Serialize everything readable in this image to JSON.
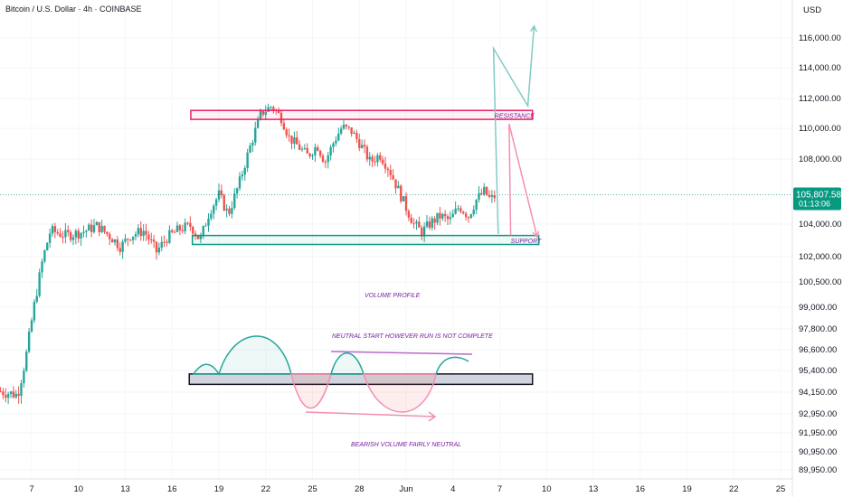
{
  "header": {
    "title": "Bitcoin / U.S. Dollar · 4h · COINBASE",
    "currency": "USD"
  },
  "last_price": {
    "value": 105807.58,
    "label": "105,807.58",
    "countdown": "01:13:06",
    "color": "#089981"
  },
  "colors": {
    "up": "#26a69a",
    "down": "#ef5350",
    "resistance": "#e91e63",
    "support": "#089981",
    "teal_arrow": "#80cbc4",
    "pink_arrow": "#f48fb1",
    "annotation_text": "#7b1fa2",
    "profile_bar": "#d1d4dc"
  },
  "annotations": {
    "resistance": "RESISTANCE",
    "support": "SUPPORT",
    "volume_profile": "VOLUME PROFILE",
    "neutral": "NEUTRAL START HOWEVER RUN IS NOT COMPLETE",
    "bearish": "BEARISH VOLUME FAIRLY NEUTRAL"
  },
  "chart_data": {
    "type": "candlestick",
    "title": "Bitcoin / U.S. Dollar · 4h · COINBASE",
    "y_axis": {
      "currency": "USD",
      "ticks": [
        {
          "value": 116000,
          "label": "116,000.00"
        },
        {
          "value": 114000,
          "label": "114,000.00"
        },
        {
          "value": 112000,
          "label": "112,000.00"
        },
        {
          "value": 110000,
          "label": "110,000.00"
        },
        {
          "value": 108000,
          "label": "108,000.00"
        },
        {
          "value": 104000,
          "label": "104,000.00"
        },
        {
          "value": 102000,
          "label": "102,000.00"
        },
        {
          "value": 100500,
          "label": "100,500.00"
        },
        {
          "value": 99000,
          "label": "99,000.00"
        },
        {
          "value": 97800,
          "label": "97,800.00"
        },
        {
          "value": 96600,
          "label": "96,600.00"
        },
        {
          "value": 95400,
          "label": "95,400.00"
        },
        {
          "value": 94150,
          "label": "94,150.00"
        },
        {
          "value": 92950,
          "label": "92,950.00"
        },
        {
          "value": 91950,
          "label": "91,950.00"
        },
        {
          "value": 90950,
          "label": "90,950.00"
        },
        {
          "value": 89950,
          "label": "89,950.00"
        }
      ]
    },
    "x_axis": {
      "unit": "day",
      "ticks": [
        {
          "day": 7,
          "label": "7"
        },
        {
          "day": 10,
          "label": "10"
        },
        {
          "day": 13,
          "label": "13"
        },
        {
          "day": 16,
          "label": "16"
        },
        {
          "day": 19,
          "label": "19"
        },
        {
          "day": 22,
          "label": "22"
        },
        {
          "day": 25,
          "label": "25"
        },
        {
          "day": 28,
          "label": "28"
        },
        {
          "day": 31,
          "label": "Jun"
        },
        {
          "day": 34,
          "label": "4"
        },
        {
          "day": 37,
          "label": "7"
        },
        {
          "day": 40,
          "label": "10"
        },
        {
          "day": 43,
          "label": "13"
        },
        {
          "day": 46,
          "label": "16"
        },
        {
          "day": 49,
          "label": "19"
        },
        {
          "day": 52,
          "label": "22"
        },
        {
          "day": 55,
          "label": "25"
        }
      ]
    },
    "price_path": [
      {
        "day": 5.0,
        "price": 94200
      },
      {
        "day": 6.1,
        "price": 94000
      },
      {
        "day": 6.6,
        "price": 96000
      },
      {
        "day": 7.1,
        "price": 98800
      },
      {
        "day": 7.7,
        "price": 101800
      },
      {
        "day": 8.2,
        "price": 103600
      },
      {
        "day": 9.2,
        "price": 103300
      },
      {
        "day": 10.2,
        "price": 103500
      },
      {
        "day": 11.2,
        "price": 103900
      },
      {
        "day": 12.2,
        "price": 103100
      },
      {
        "day": 12.7,
        "price": 102600
      },
      {
        "day": 13.3,
        "price": 103300
      },
      {
        "day": 14.2,
        "price": 103600
      },
      {
        "day": 15.0,
        "price": 102300
      },
      {
        "day": 15.7,
        "price": 103200
      },
      {
        "day": 16.5,
        "price": 103700
      },
      {
        "day": 17.2,
        "price": 103900
      },
      {
        "day": 17.8,
        "price": 103000
      },
      {
        "day": 18.4,
        "price": 104800
      },
      {
        "day": 19.0,
        "price": 105800
      },
      {
        "day": 19.6,
        "price": 104600
      },
      {
        "day": 20.3,
        "price": 106500
      },
      {
        "day": 21.0,
        "price": 108800
      },
      {
        "day": 21.7,
        "price": 111000
      },
      {
        "day": 22.4,
        "price": 111500
      },
      {
        "day": 23.0,
        "price": 110700
      },
      {
        "day": 23.5,
        "price": 109400
      },
      {
        "day": 24.1,
        "price": 108800
      },
      {
        "day": 24.7,
        "price": 108200
      },
      {
        "day": 25.3,
        "price": 108900
      },
      {
        "day": 25.8,
        "price": 107800
      },
      {
        "day": 26.4,
        "price": 109200
      },
      {
        "day": 26.9,
        "price": 110100
      },
      {
        "day": 27.5,
        "price": 109800
      },
      {
        "day": 28.1,
        "price": 108900
      },
      {
        "day": 28.7,
        "price": 107800
      },
      {
        "day": 29.3,
        "price": 108300
      },
      {
        "day": 29.9,
        "price": 107400
      },
      {
        "day": 30.5,
        "price": 106100
      },
      {
        "day": 31.0,
        "price": 105000
      },
      {
        "day": 31.5,
        "price": 104000
      },
      {
        "day": 32.0,
        "price": 103500
      },
      {
        "day": 32.6,
        "price": 104100
      },
      {
        "day": 33.2,
        "price": 104500
      },
      {
        "day": 33.8,
        "price": 104200
      },
      {
        "day": 34.4,
        "price": 105100
      },
      {
        "day": 35.0,
        "price": 104500
      },
      {
        "day": 35.5,
        "price": 105500
      },
      {
        "day": 36.0,
        "price": 106000
      },
      {
        "day": 36.4,
        "price": 105500
      },
      {
        "day": 36.8,
        "price": 105807
      }
    ],
    "levels": {
      "resistance": {
        "low": 110600,
        "high": 111200,
        "from_day": 17.2,
        "to_day": 39.1
      },
      "support": {
        "low": 102750,
        "high": 103300,
        "from_day": 17.3,
        "to_day": 39.5
      },
      "profile_bar": {
        "low": 94600,
        "high": 95200,
        "from_day": 17.1,
        "to_day": 39.1
      }
    },
    "projections": [
      {
        "name": "teal-up",
        "points": [
          {
            "day": 36.9,
            "price": 103400
          },
          {
            "day": 36.6,
            "price": 115300
          },
          {
            "day": 38.8,
            "price": 111500
          },
          {
            "day": 39.2,
            "price": 116800
          }
        ]
      },
      {
        "name": "pink-down",
        "points": [
          {
            "day": 37.7,
            "price": 103300
          },
          {
            "day": 37.6,
            "price": 110300
          },
          {
            "day": 39.4,
            "price": 103200
          }
        ]
      }
    ],
    "volume_profile_waves": {
      "upper_end": "green",
      "lower_end": "pink"
    }
  }
}
